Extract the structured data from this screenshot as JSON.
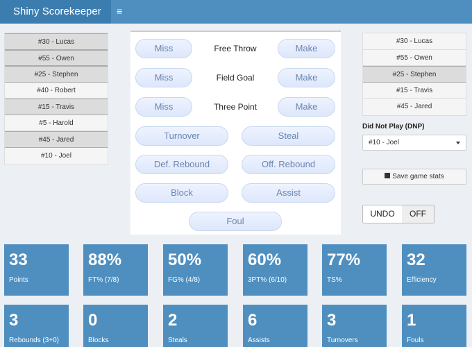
{
  "navbar": {
    "brand": "Shiny Scorekeeper",
    "menu_icon": "≡"
  },
  "left_roster": [
    {
      "label": "#30 - Lucas",
      "selected": true
    },
    {
      "label": "#55 - Owen",
      "selected": true
    },
    {
      "label": "#25 - Stephen",
      "selected": true
    },
    {
      "label": "#40 - Robert",
      "selected": false
    },
    {
      "label": "#15 - Travis",
      "selected": true
    },
    {
      "label": "#5 - Harold",
      "selected": false
    },
    {
      "label": "#45 - Jared",
      "selected": true
    },
    {
      "label": "#10 - Joel",
      "selected": false
    }
  ],
  "right_roster": [
    {
      "label": "#30 - Lucas",
      "selected": false
    },
    {
      "label": "#55 - Owen",
      "selected": false
    },
    {
      "label": "#25 - Stephen",
      "selected": true
    },
    {
      "label": "#15 - Travis",
      "selected": false
    },
    {
      "label": "#45 - Jared",
      "selected": false
    }
  ],
  "actions": {
    "ft_miss": "Miss",
    "ft_label": "Free Throw",
    "ft_make": "Make",
    "fg_miss": "Miss",
    "fg_label": "Field Goal",
    "fg_make": "Make",
    "tp_miss": "Miss",
    "tp_label": "Three Point",
    "tp_make": "Make",
    "turnover": "Turnover",
    "steal": "Steal",
    "def_rebound": "Def. Rebound",
    "off_rebound": "Off. Rebound",
    "block": "Block",
    "assist": "Assist",
    "foul": "Foul"
  },
  "dnp": {
    "title": "Did Not Play (DNP)",
    "selected": "#10 - Joel"
  },
  "save_label": "Save game stats",
  "undo": {
    "undo_label": "UNDO",
    "state_label": "OFF"
  },
  "stats_row1": [
    {
      "value": "33",
      "caption": "Points"
    },
    {
      "value": "88%",
      "caption": "FT% (7/8)"
    },
    {
      "value": "50%",
      "caption": "FG% (4/8)"
    },
    {
      "value": "60%",
      "caption": "3PT% (6/10)"
    },
    {
      "value": "77%",
      "caption": "TS%"
    },
    {
      "value": "32",
      "caption": "Efficiency"
    }
  ],
  "stats_row2": [
    {
      "value": "3",
      "caption": "Rebounds (3+0)"
    },
    {
      "value": "0",
      "caption": "Blocks"
    },
    {
      "value": "2",
      "caption": "Steals"
    },
    {
      "value": "6",
      "caption": "Assists"
    },
    {
      "value": "3",
      "caption": "Turnovers"
    },
    {
      "value": "1",
      "caption": "Fouls"
    }
  ],
  "colors": {
    "accent": "#4e8fc0",
    "brand_bg": "#3c7db0"
  }
}
